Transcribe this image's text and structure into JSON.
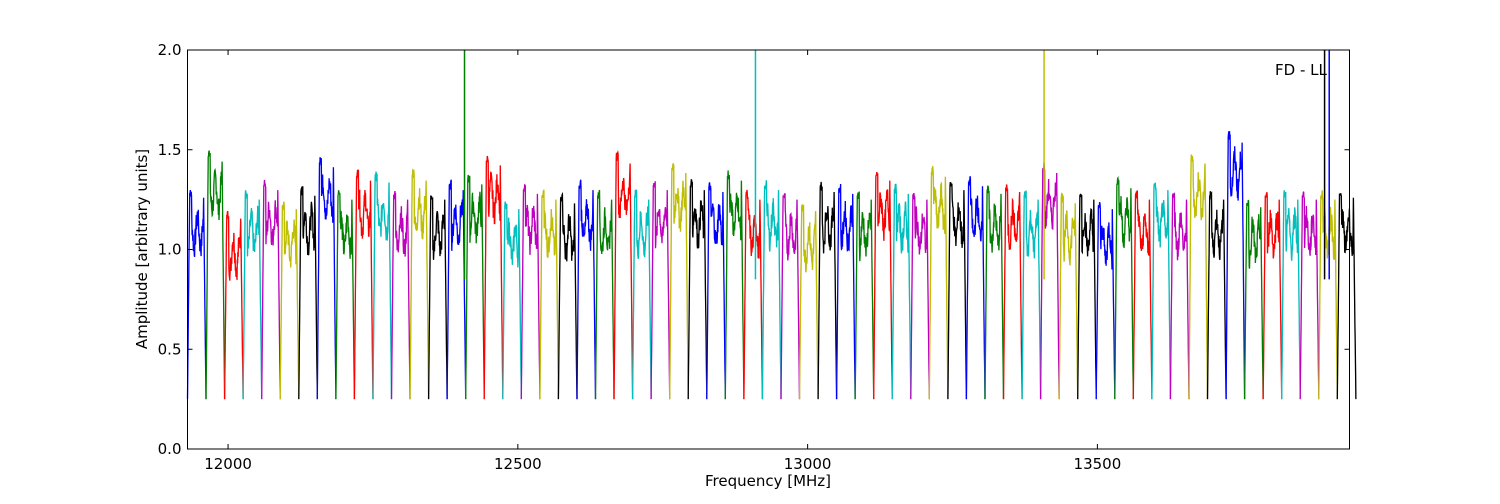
{
  "chart_data": {
    "type": "line",
    "title": "",
    "annotation": "FD - LL",
    "xlabel": "Frequency [MHz]",
    "ylabel": "Amplitude [arbitrary units]",
    "xlim": [
      11930,
      13935
    ],
    "ylim": [
      0.0,
      2.0
    ],
    "xticks": [
      12000,
      12500,
      13000,
      13500
    ],
    "xtick_labels": [
      "12000",
      "12500",
      "13000",
      "13500"
    ],
    "yticks": [
      0.0,
      0.5,
      1.0,
      1.5,
      2.0
    ],
    "ytick_labels": [
      "0.0",
      "0.5",
      "1.0",
      "1.5",
      "2.0"
    ],
    "grid": false,
    "legend": "none",
    "band_width_mhz": 32,
    "color_cycle": [
      "#0000ff",
      "#008000",
      "#ff0000",
      "#00bfbf",
      "#bf00bf",
      "#bfbf00",
      "#000000"
    ],
    "background_color": "#c0c0c0",
    "band_starts": [
      11930,
      11962,
      11994,
      12026,
      12058,
      12090,
      12122,
      12154,
      12186,
      12218,
      12250,
      12282,
      12314,
      12346,
      12378,
      12410,
      12442,
      12474,
      12506,
      12538,
      12570,
      12602,
      12634,
      12666,
      12698,
      12730,
      12762,
      12794,
      12826,
      12858,
      12890,
      12922,
      12954,
      12986,
      13018,
      13050,
      13082,
      13114,
      13146,
      13178,
      13210,
      13242,
      13274,
      13306,
      13338,
      13370,
      13402,
      13434,
      13466,
      13498,
      13530,
      13562,
      13594,
      13626,
      13658,
      13690,
      13722,
      13754,
      13786,
      13818,
      13850,
      13882,
      13914
    ],
    "band_peaks": [
      1.31,
      1.5,
      1.2,
      1.3,
      1.35,
      1.25,
      1.32,
      1.47,
      1.3,
      1.4,
      1.39,
      1.3,
      1.4,
      1.3,
      1.35,
      1.38,
      1.48,
      1.25,
      1.33,
      1.3,
      1.28,
      1.35,
      1.3,
      1.49,
      1.3,
      1.35,
      1.44,
      1.35,
      1.34,
      1.4,
      1.3,
      1.35,
      1.3,
      1.24,
      1.34,
      1.33,
      1.3,
      1.4,
      1.33,
      1.3,
      1.42,
      1.35,
      1.37,
      1.33,
      1.34,
      1.3,
      1.44,
      1.28,
      1.3,
      1.25,
      1.36,
      1.3,
      1.35,
      1.3,
      1.49,
      1.3,
      1.6,
      1.26,
      1.3,
      1.3,
      1.3,
      1.3,
      1.31
    ],
    "band_floor": 0.25,
    "spikes": [
      {
        "x": 12408,
        "y_top": 2.0,
        "color": "#008000"
      },
      {
        "x": 12910,
        "y_top": 2.0,
        "color": "#00bfbf"
      },
      {
        "x": 13408,
        "y_top": 2.0,
        "color": "#bfbf00"
      },
      {
        "x": 13892,
        "y_top": 2.0,
        "color": "#000000"
      },
      {
        "x": 13900,
        "y_top": 2.0,
        "color": "#0000ff"
      }
    ]
  }
}
